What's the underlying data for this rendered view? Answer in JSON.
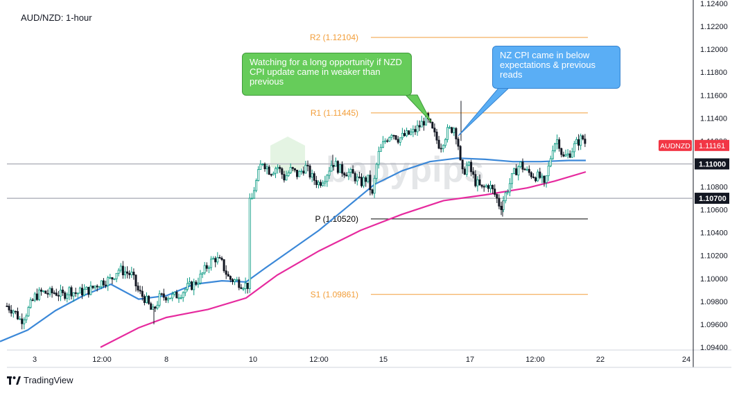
{
  "chart_data": {
    "type": "candlestick",
    "title": "AUD/NZD: 1-hour",
    "symbol": "AUDNZD",
    "last_price": "1.11161",
    "ylim": [
      1.094,
      1.124
    ],
    "y_tick_labels": [
      "1.12400",
      "1.12200",
      "1.12000",
      "1.11800",
      "1.11600",
      "1.11400",
      "1.11200",
      "1.11000",
      "1.10800",
      "1.10600",
      "1.10400",
      "1.10200",
      "1.10000",
      "1.09800",
      "1.09600",
      "1.09400"
    ],
    "x_tick_labels": [
      "3",
      "12:00",
      "8",
      "10",
      "12:00",
      "15",
      "17",
      "12:00",
      "22",
      "24"
    ],
    "horizontal_price_labels": [
      "1.11000",
      "1.10700"
    ],
    "horizontal_lines": [
      1.11,
      1.107
    ],
    "pivot_levels": [
      {
        "label": "R2 (1.12104)",
        "value": 1.12104,
        "color": "#f29d38"
      },
      {
        "label": "R1 (1.11445)",
        "value": 1.11445,
        "color": "#f29d38"
      },
      {
        "label": "P (1.10520)",
        "value": 1.1052,
        "color": "#000000"
      },
      {
        "label": "S1 (1.09861)",
        "value": 1.09861,
        "color": "#f29d38"
      }
    ],
    "moving_averages": [
      {
        "color": "#3b88d8",
        "points": [
          [
            0,
            1.0945
          ],
          [
            40,
            1.0955
          ],
          [
            80,
            1.0972
          ],
          [
            120,
            1.0985
          ],
          [
            160,
            1.0995
          ],
          [
            200,
            1.0982
          ],
          [
            240,
            1.0985
          ],
          [
            280,
            1.0995
          ],
          [
            320,
            1.0998
          ],
          [
            355,
            1.0997
          ],
          [
            380,
            1.1008
          ],
          [
            420,
            1.1025
          ],
          [
            460,
            1.1042
          ],
          [
            500,
            1.1062
          ],
          [
            540,
            1.1082
          ],
          [
            580,
            1.1094
          ],
          [
            620,
            1.1102
          ],
          [
            660,
            1.1105
          ],
          [
            700,
            1.1104
          ],
          [
            740,
            1.1102
          ],
          [
            780,
            1.1102
          ],
          [
            820,
            1.1103
          ],
          [
            845,
            1.1103
          ]
        ]
      },
      {
        "color": "#e62a9e",
        "points": [
          [
            145,
            1.094
          ],
          [
            200,
            1.0957
          ],
          [
            240,
            1.0966
          ],
          [
            300,
            1.0973
          ],
          [
            355,
            1.0983
          ],
          [
            400,
            1.1003
          ],
          [
            460,
            1.1024
          ],
          [
            520,
            1.1042
          ],
          [
            580,
            1.1056
          ],
          [
            640,
            1.1068
          ],
          [
            700,
            1.1073
          ],
          [
            760,
            1.1079
          ],
          [
            800,
            1.1085
          ],
          [
            845,
            1.1093
          ]
        ]
      }
    ],
    "price_path": [
      [
        10,
        1.0976
      ],
      [
        20,
        1.0972
      ],
      [
        30,
        1.0963
      ],
      [
        40,
        1.0972
      ],
      [
        50,
        1.0984
      ],
      [
        60,
        1.0988
      ],
      [
        70,
        1.0987
      ],
      [
        80,
        1.0988
      ],
      [
        90,
        1.0985
      ],
      [
        100,
        1.099
      ],
      [
        110,
        1.0987
      ],
      [
        120,
        1.0989
      ],
      [
        130,
        1.099
      ],
      [
        140,
        1.0995
      ],
      [
        150,
        1.0998
      ],
      [
        160,
        1.0999
      ],
      [
        170,
        1.1008
      ],
      [
        180,
        1.1006
      ],
      [
        190,
        1.1003
      ],
      [
        200,
        1.0988
      ],
      [
        210,
        1.0982
      ],
      [
        220,
        1.097
      ],
      [
        230,
        1.0983
      ],
      [
        240,
        1.0985
      ],
      [
        250,
        1.0984
      ],
      [
        260,
        1.0987
      ],
      [
        270,
        1.0992
      ],
      [
        280,
        1.0995
      ],
      [
        290,
        1.1002
      ],
      [
        300,
        1.1012
      ],
      [
        310,
        1.1018
      ],
      [
        320,
        1.1013
      ],
      [
        330,
        1.1
      ],
      [
        340,
        1.0998
      ],
      [
        350,
        1.0995
      ],
      [
        358,
        1.0994
      ],
      [
        362,
        1.107
      ],
      [
        370,
        1.1085
      ],
      [
        378,
        1.1103
      ],
      [
        390,
        1.1093
      ],
      [
        400,
        1.1098
      ],
      [
        410,
        1.1088
      ],
      [
        420,
        1.1095
      ],
      [
        430,
        1.109
      ],
      [
        440,
        1.1098
      ],
      [
        450,
        1.1088
      ],
      [
        460,
        1.1083
      ],
      [
        470,
        1.109
      ],
      [
        480,
        1.1102
      ],
      [
        490,
        1.1095
      ],
      [
        500,
        1.1093
      ],
      [
        510,
        1.109
      ],
      [
        520,
        1.1083
      ],
      [
        530,
        1.1088
      ],
      [
        537,
        1.1072
      ],
      [
        545,
        1.1107
      ],
      [
        555,
        1.112
      ],
      [
        565,
        1.1128
      ],
      [
        575,
        1.1122
      ],
      [
        585,
        1.1125
      ],
      [
        595,
        1.1127
      ],
      [
        605,
        1.1133
      ],
      [
        615,
        1.114
      ],
      [
        625,
        1.1127
      ],
      [
        635,
        1.1115
      ],
      [
        645,
        1.1128
      ],
      [
        655,
        1.1132
      ],
      [
        660,
        1.1122
      ],
      [
        666,
        1.109
      ],
      [
        675,
        1.11
      ],
      [
        685,
        1.1085
      ],
      [
        695,
        1.1078
      ],
      [
        705,
        1.1082
      ],
      [
        715,
        1.1072
      ],
      [
        722,
        1.1062
      ],
      [
        730,
        1.1075
      ],
      [
        740,
        1.109
      ],
      [
        750,
        1.11
      ],
      [
        760,
        1.1093
      ],
      [
        770,
        1.109
      ],
      [
        780,
        1.1088
      ],
      [
        785,
        1.108
      ],
      [
        790,
        1.1093
      ],
      [
        798,
        1.1117
      ],
      [
        805,
        1.1122
      ],
      [
        812,
        1.1105
      ],
      [
        820,
        1.1108
      ],
      [
        830,
        1.1117
      ],
      [
        840,
        1.1123
      ],
      [
        846,
        1.1116
      ]
    ],
    "wick_spikes": [
      [
        665,
        1.1155,
        1.112
      ],
      [
        725,
        1.1054,
        1.1068
      ],
      [
        222,
        1.096,
        1.0975
      ],
      [
        480,
        1.1108,
        1.1097
      ]
    ]
  },
  "annotations": {
    "green": "Watching for a long opportunity if NZD CPI update came in weaker than previous",
    "blue": "NZ CPI came in below expectations & previous reads"
  },
  "colors": {
    "up": "#089981",
    "down": "#131722",
    "axis_text": "#131722",
    "grid_line": "#b2b5be",
    "symbol_badge": "#f23645"
  },
  "branding": {
    "text": "TradingView",
    "watermark": "babypips",
    "logo_icon": "tradingview-logo-icon",
    "watermark_icon": "babypips-cube-icon"
  }
}
